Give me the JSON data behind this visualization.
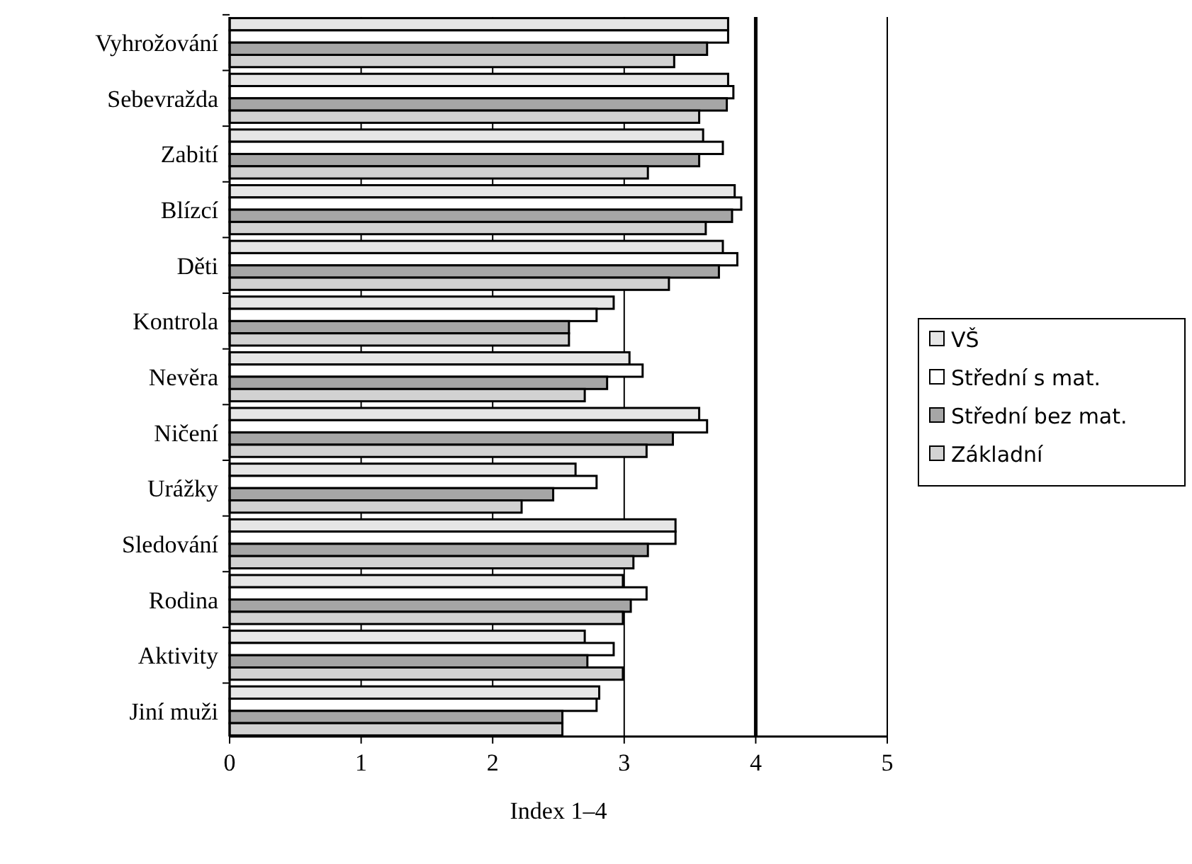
{
  "chart_data": {
    "type": "bar",
    "orientation": "horizontal",
    "xlabel": "Index 1–4",
    "categories": [
      "Vyhrožování",
      "Sebevražda",
      "Zabití",
      "Blízcí",
      "Děti",
      "Kontrola",
      "Nevěra",
      "Ničení",
      "Urážky",
      "Sledování",
      "Rodina",
      "Aktivity",
      "Jiní muži"
    ],
    "series": [
      {
        "name": "VŠ",
        "color": "#e6e6e6",
        "values": [
          3.79,
          3.79,
          3.6,
          3.84,
          3.75,
          2.92,
          3.04,
          3.57,
          2.63,
          3.39,
          2.99,
          2.7,
          2.81
        ]
      },
      {
        "name": "Střední s mat.",
        "color": "#ffffff",
        "values": [
          3.79,
          3.83,
          3.75,
          3.89,
          3.86,
          2.79,
          3.14,
          3.63,
          2.79,
          3.39,
          3.17,
          2.92,
          2.79
        ]
      },
      {
        "name": "Střední bez mat.",
        "color": "#a6a6a6",
        "values": [
          3.63,
          3.78,
          3.57,
          3.82,
          3.72,
          2.58,
          2.87,
          3.37,
          2.46,
          3.18,
          3.05,
          2.72,
          2.53
        ]
      },
      {
        "name": "Základní",
        "color": "#d2d2d2",
        "values": [
          3.38,
          3.57,
          3.18,
          3.62,
          3.34,
          2.58,
          2.7,
          3.17,
          2.22,
          3.07,
          2.99,
          2.99,
          2.53
        ]
      }
    ],
    "xlim": [
      0,
      5
    ],
    "xticks": [
      0,
      1,
      2,
      3,
      4,
      5
    ],
    "grid": "x",
    "legend": "right",
    "ref_lines": [
      {
        "axis": "x",
        "value": 4
      }
    ]
  }
}
